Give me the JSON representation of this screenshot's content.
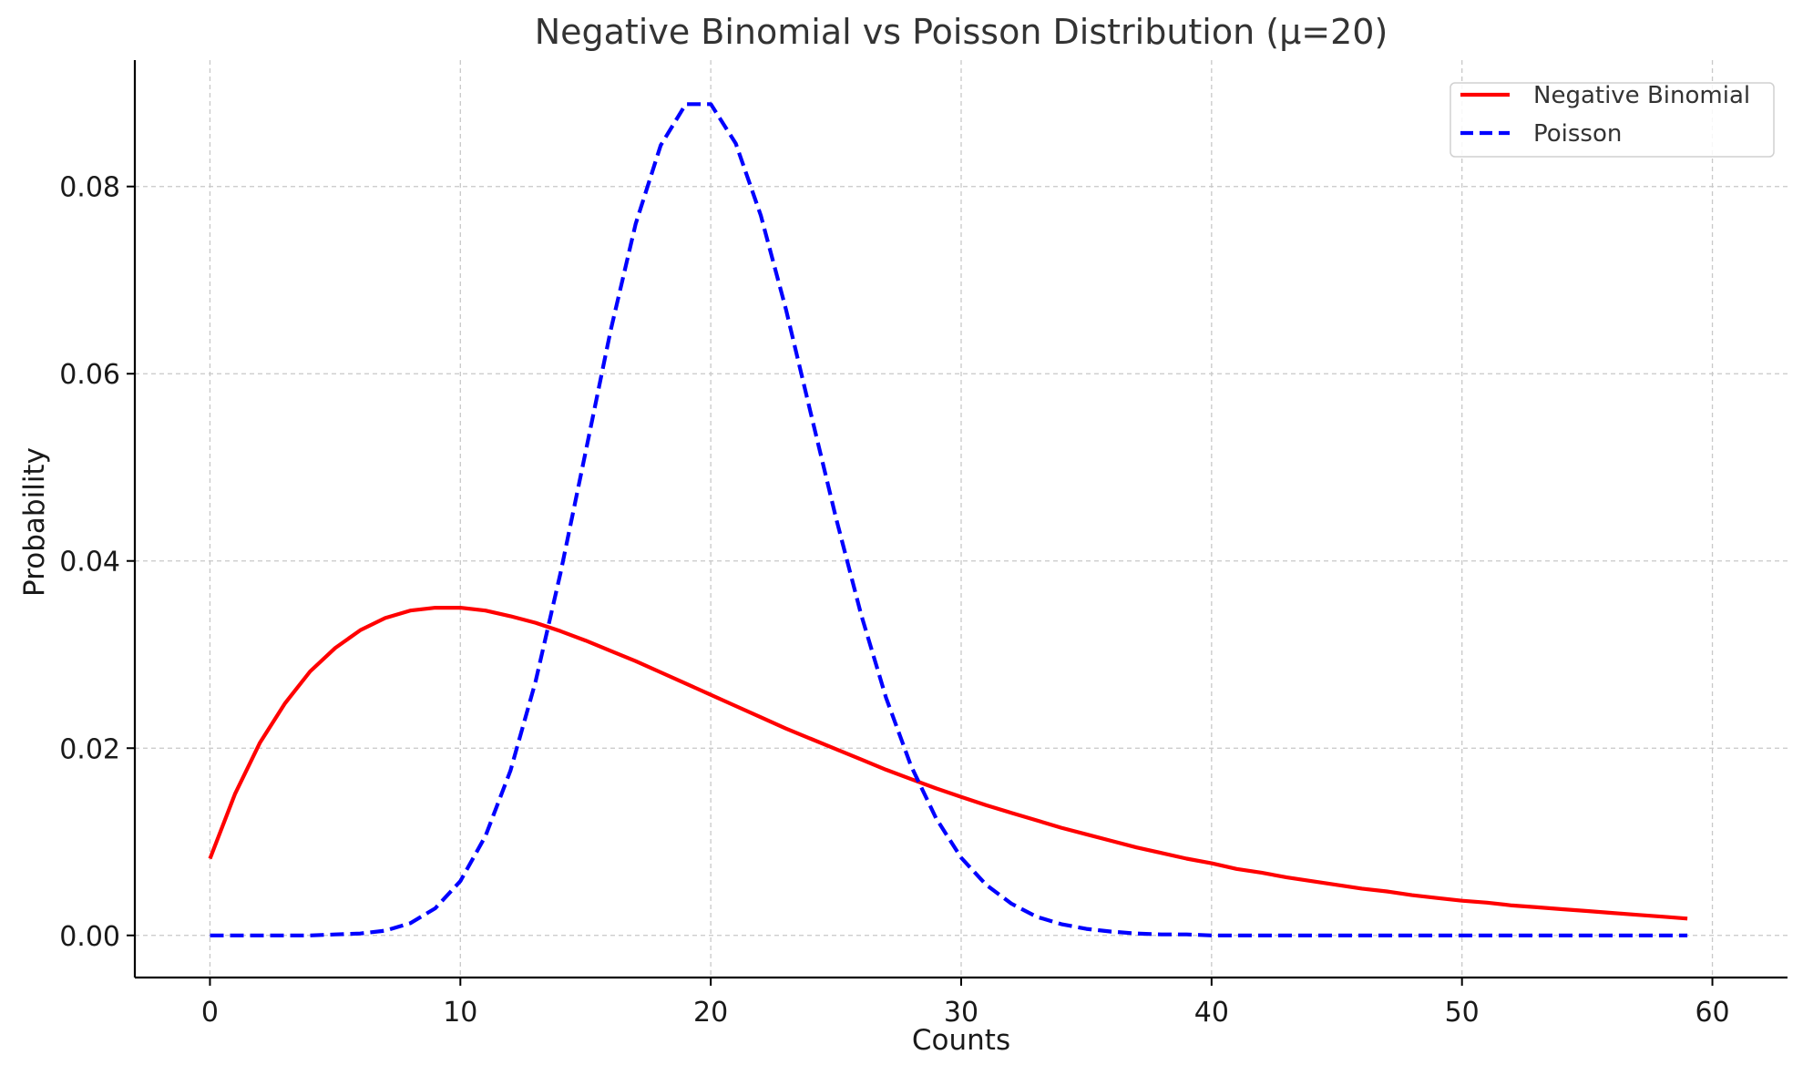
{
  "chart_data": {
    "type": "line",
    "title": "Negative Binomial vs Poisson Distribution (μ=20)",
    "xlabel": "Counts",
    "ylabel": "Probability",
    "xlim": [
      -3,
      63
    ],
    "ylim": [
      -0.0045,
      0.0935
    ],
    "xticks": [
      0,
      10,
      20,
      30,
      40,
      50,
      60
    ],
    "yticks": [
      0.0,
      0.02,
      0.04,
      0.06,
      0.08
    ],
    "ytick_labels": [
      "0.00",
      "0.02",
      "0.04",
      "0.06",
      "0.08"
    ],
    "grid": true,
    "legend_position": "upper right",
    "x": [
      0,
      1,
      2,
      3,
      4,
      5,
      6,
      7,
      8,
      9,
      10,
      11,
      12,
      13,
      14,
      15,
      16,
      17,
      18,
      19,
      20,
      21,
      22,
      23,
      24,
      25,
      26,
      27,
      28,
      29,
      30,
      31,
      32,
      33,
      34,
      35,
      36,
      37,
      38,
      39,
      40,
      41,
      42,
      43,
      44,
      45,
      46,
      47,
      48,
      49,
      50,
      51,
      52,
      53,
      54,
      55,
      56,
      57,
      58,
      59
    ],
    "series": [
      {
        "name": "Negative Binomial",
        "color": "#ff0000",
        "style": "solid",
        "values": [
          0.0082,
          0.0151,
          0.0206,
          0.0248,
          0.0282,
          0.0307,
          0.0326,
          0.0339,
          0.0347,
          0.035,
          0.035,
          0.0347,
          0.0341,
          0.0334,
          0.0325,
          0.0315,
          0.0304,
          0.0293,
          0.0281,
          0.0269,
          0.0257,
          0.0245,
          0.0233,
          0.0221,
          0.021,
          0.0199,
          0.0188,
          0.0177,
          0.0167,
          0.0157,
          0.0148,
          0.0139,
          0.0131,
          0.0123,
          0.0115,
          0.0108,
          0.0101,
          0.0094,
          0.0088,
          0.0082,
          0.0077,
          0.0071,
          0.0067,
          0.0062,
          0.0058,
          0.0054,
          0.005,
          0.0047,
          0.0043,
          0.004,
          0.0037,
          0.0035,
          0.0032,
          0.003,
          0.0028,
          0.0026,
          0.0024,
          0.0022,
          0.002,
          0.0018
        ]
      },
      {
        "name": "Poisson",
        "color": "#0000ff",
        "style": "dashed",
        "values": [
          0.0,
          0.0,
          0.0,
          0.0,
          0.0,
          0.0001,
          0.0002,
          0.0005,
          0.0013,
          0.0029,
          0.0058,
          0.0106,
          0.0176,
          0.0271,
          0.0387,
          0.0516,
          0.0646,
          0.076,
          0.0844,
          0.0888,
          0.0888,
          0.0846,
          0.0769,
          0.0669,
          0.0557,
          0.0446,
          0.0343,
          0.0254,
          0.0181,
          0.0125,
          0.0083,
          0.0054,
          0.0034,
          0.002,
          0.0012,
          0.0007,
          0.0004,
          0.0002,
          0.0001,
          0.0001,
          0.0,
          0.0,
          0.0,
          0.0,
          0.0,
          0.0,
          0.0,
          0.0,
          0.0,
          0.0,
          0.0,
          0.0,
          0.0,
          0.0,
          0.0,
          0.0,
          0.0,
          0.0,
          0.0,
          0.0
        ]
      }
    ]
  }
}
